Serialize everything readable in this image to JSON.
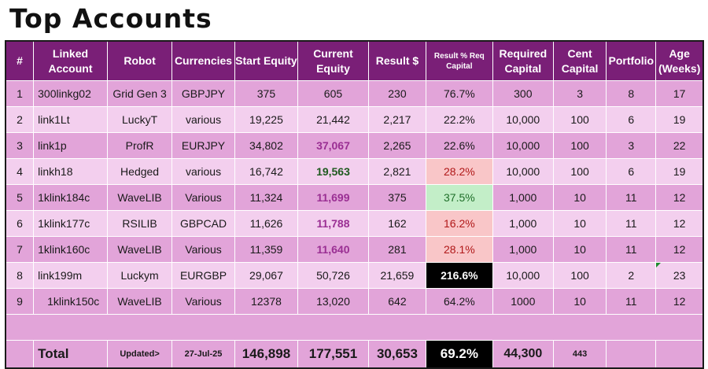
{
  "title": "Top Accounts",
  "columns": [
    "#",
    "Linked Account",
    "Robot",
    "Currencies",
    "Start Equity",
    "Current Equity",
    "Result $",
    "Result % Req Capital",
    "Required Capital",
    "Cent Capital",
    "Portfolio",
    "Age (Weeks)"
  ],
  "rows": [
    [
      "1",
      "300linkg02",
      "Grid Gen 3",
      "GBPJPY",
      "375",
      "605",
      "230",
      "76.7%",
      "300",
      "3",
      "8",
      "17"
    ],
    [
      "2",
      "link1Lt",
      "LuckyT",
      "various",
      "19,225",
      "21,442",
      "2,217",
      "22.2%",
      "10,000",
      "100",
      "6",
      "19"
    ],
    [
      "3",
      "link1p",
      "ProfR",
      "EURJPY",
      "34,802",
      "37,067",
      "2,265",
      "22.6%",
      "10,000",
      "100",
      "3",
      "22"
    ],
    [
      "4",
      "linkh18",
      "Hedged",
      "various",
      "16,742",
      "19,563",
      "2,821",
      "28.2%",
      "10,000",
      "100",
      "6",
      "19"
    ],
    [
      "5",
      "1klink184c",
      "WaveLIB",
      "Various",
      "11,324",
      "11,699",
      "375",
      "37.5%",
      "1,000",
      "10",
      "11",
      "12"
    ],
    [
      "6",
      "1klink177c",
      "RSILIB",
      "GBPCAD",
      "11,626",
      "11,788",
      "162",
      "16.2%",
      "1,000",
      "10",
      "11",
      "12"
    ],
    [
      "7",
      "1klink160c",
      "WaveLIB",
      "Various",
      "11,359",
      "11,640",
      "281",
      "28.1%",
      "1,000",
      "10",
      "11",
      "12"
    ],
    [
      "8",
      "link199m",
      "Luckym",
      "EURGBP",
      "29,067",
      "50,726",
      "21,659",
      "216.6%",
      "10,000",
      "100",
      "2",
      "23"
    ],
    [
      "9",
      "1klink150c",
      "WaveLIB",
      "Various",
      "12378",
      "13,020",
      "642",
      "64.2%",
      "1000",
      "10",
      "11",
      "12"
    ]
  ],
  "total": {
    "label": "Total",
    "updated_label": "Updated>",
    "date": "27-Jul-25",
    "start_equity": "146,898",
    "current_equity": "177,551",
    "result": "30,653",
    "result_pct": "69.2%",
    "required_capital": "44,300",
    "cent_capital": "443"
  },
  "colors": {
    "header": "#7a1f77",
    "row_dark": "#e2a4d9",
    "row_light": "#f3cfee",
    "equity_purple": "#9a2f93",
    "pct_red_bg": "#f9c6c8",
    "pct_green_bg": "#c3eec8"
  }
}
